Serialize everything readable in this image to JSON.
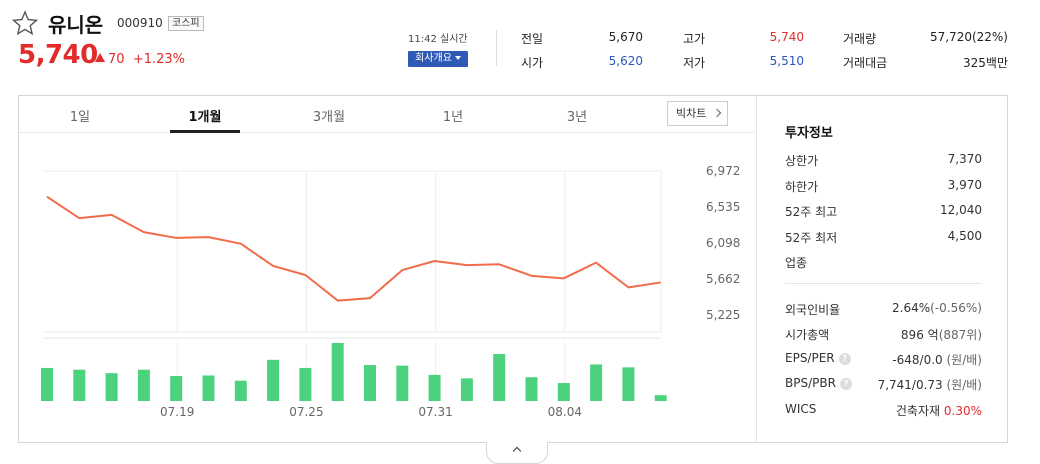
{
  "stock": {
    "name": "유니온",
    "code": "000910",
    "market": "코스피",
    "price": "5,740",
    "change": "70",
    "change_pct": "+1.23%",
    "time": "11:42 실시간",
    "company_button": "회사개요",
    "accent_up": "#e22b2b",
    "accent_down": "#2b56c4",
    "favorite_icon": "star-outline-icon"
  },
  "summary": [
    {
      "label": "전일",
      "value": "5,670",
      "tone": "normal"
    },
    {
      "label": "시가",
      "value": "5,620",
      "tone": "down"
    },
    {
      "label": "고가",
      "value": "5,740",
      "tone": "up"
    },
    {
      "label": "저가",
      "value": "5,510",
      "tone": "down"
    },
    {
      "label": "거래량",
      "value": "57,720(22%)",
      "tone": "normal"
    },
    {
      "label": "거래대금",
      "value": "325백만",
      "tone": "normal"
    }
  ],
  "tabs": [
    "1일",
    "1개월",
    "3개월",
    "1년",
    "3년"
  ],
  "active_tab": "1개월",
  "big_chart_label": "빅차트",
  "chart_data": {
    "type": "line",
    "price_series": [
      6660,
      6400,
      6440,
      6230,
      6160,
      6170,
      6090,
      5820,
      5710,
      5400,
      5430,
      5770,
      5880,
      5830,
      5840,
      5700,
      5670,
      5860,
      5560,
      5620
    ],
    "volume_series": [
      0.57,
      0.54,
      0.48,
      0.54,
      0.43,
      0.44,
      0.35,
      0.71,
      0.57,
      1.0,
      0.62,
      0.61,
      0.45,
      0.39,
      0.81,
      0.41,
      0.31,
      0.63,
      0.58,
      0.1
    ],
    "y_ticks": [
      "6,972",
      "6,535",
      "6,098",
      "5,662",
      "5,225"
    ],
    "y_tick_values": [
      6972,
      6535,
      6098,
      5662,
      5225
    ],
    "ylim": [
      5225,
      6972
    ],
    "x_ticks": [
      "07.19",
      "07.25",
      "07.31",
      "08.04"
    ],
    "x_tick_index": [
      4,
      8,
      12,
      16
    ],
    "line_color": "#f26b4b",
    "bar_color": "#4cd17f",
    "grid": true
  },
  "invest": {
    "title": "투자정보",
    "rows1": [
      {
        "label": "상한가",
        "value": "7,370",
        "tone": "up"
      },
      {
        "label": "하한가",
        "value": "3,970",
        "tone": "down"
      },
      {
        "label": "52주 최고",
        "value": "12,040",
        "tone": "normal"
      },
      {
        "label": "52주 최저",
        "value": "4,500",
        "tone": "normal"
      },
      {
        "label": "업종",
        "value": "",
        "tone": "normal"
      }
    ],
    "rows2": [
      {
        "label": "외국인비율",
        "value": "2.64%",
        "sub": "(-0.56%)",
        "hint": false
      },
      {
        "label": "시가총액",
        "value": "896 억",
        "sub": "(887위)",
        "hint": false
      },
      {
        "label": "EPS/PER",
        "value": "-648/0.0",
        "sub": " (원/배)",
        "hint": true
      },
      {
        "label": "BPS/PBR",
        "value": "7,741/0.73",
        "sub": " (원/배)",
        "hint": true
      },
      {
        "label": "WICS",
        "value": "건축자재",
        "sub": "0.30%",
        "hint": false
      }
    ],
    "hint_mark": "?"
  }
}
